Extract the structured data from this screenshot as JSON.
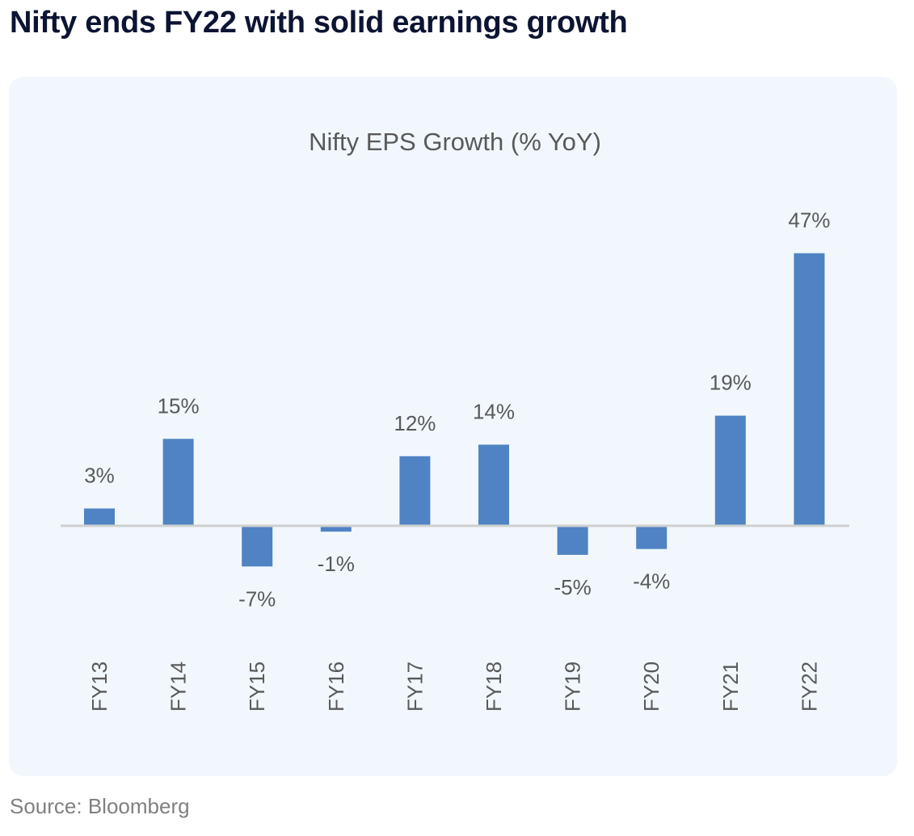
{
  "page": {
    "title": "Nifty ends FY22 with solid earnings growth",
    "source": "Source: Bloomberg"
  },
  "colors": {
    "bar": "#4f83c4",
    "axis": "#d0d0d0",
    "label": "#595959",
    "title": "#0c1433",
    "card": "#f1f7fd"
  },
  "chart_data": {
    "type": "bar",
    "title": "Nifty EPS Growth (% YoY)",
    "xlabel": "",
    "ylabel": "",
    "categories": [
      "FY13",
      "FY14",
      "FY15",
      "FY16",
      "FY17",
      "FY18",
      "FY19",
      "FY20",
      "FY21",
      "FY22"
    ],
    "values": [
      3,
      15,
      -7,
      -1,
      12,
      14,
      -5,
      -4,
      19,
      47
    ],
    "data_labels": [
      "3%",
      "15%",
      "-7%",
      "-1%",
      "12%",
      "14%",
      "-5%",
      "-4%",
      "19%",
      "47%"
    ],
    "ylim": [
      -15,
      50
    ],
    "grid": false,
    "legend": "none",
    "tick_label_rotation": "vertical"
  }
}
